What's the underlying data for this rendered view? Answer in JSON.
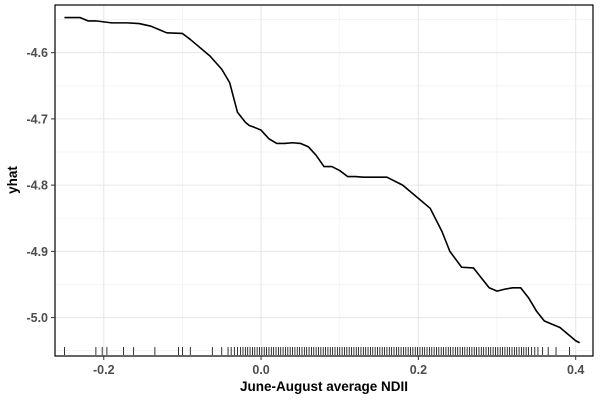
{
  "chart_data": {
    "type": "line",
    "title": "",
    "xlabel": "June-August average NDII",
    "ylabel": "yhat",
    "xlim": [
      -0.262,
      0.422
    ],
    "ylim": [
      -5.058,
      -4.528
    ],
    "x_ticks": [
      -0.2,
      0.0,
      0.2,
      0.4
    ],
    "x_tick_labels": [
      "-0.2",
      "0.0",
      "0.2",
      "0.4"
    ],
    "y_ticks": [
      -4.6,
      -4.7,
      -4.8,
      -4.9,
      -5.0
    ],
    "y_tick_labels": [
      "-4.6",
      "-4.7",
      "-4.8",
      "-4.9",
      "-5.0"
    ],
    "grid": true,
    "series": [
      {
        "color": "#000000",
        "x": [
          -0.25,
          -0.23,
          -0.22,
          -0.21,
          -0.19,
          -0.17,
          -0.155,
          -0.14,
          -0.13,
          -0.12,
          -0.1,
          -0.09,
          -0.08,
          -0.065,
          -0.05,
          -0.04,
          -0.03,
          -0.02,
          -0.015,
          -0.01,
          0.0,
          0.01,
          0.02,
          0.03,
          0.04,
          0.05,
          0.06,
          0.07,
          0.08,
          0.09,
          0.1,
          0.11,
          0.12,
          0.13,
          0.14,
          0.15,
          0.16,
          0.18,
          0.2,
          0.215,
          0.23,
          0.24,
          0.255,
          0.27,
          0.28,
          0.29,
          0.3,
          0.31,
          0.32,
          0.33,
          0.34,
          0.35,
          0.36,
          0.37,
          0.38,
          0.39,
          0.4,
          0.405
        ],
        "y": [
          -4.547,
          -4.547,
          -4.552,
          -4.552,
          -4.555,
          -4.555,
          -4.556,
          -4.56,
          -4.565,
          -4.57,
          -4.571,
          -4.58,
          -4.59,
          -4.605,
          -4.625,
          -4.645,
          -4.69,
          -4.705,
          -4.71,
          -4.712,
          -4.717,
          -4.73,
          -4.737,
          -4.737,
          -4.736,
          -4.737,
          -4.742,
          -4.755,
          -4.772,
          -4.772,
          -4.778,
          -4.787,
          -4.787,
          -4.788,
          -4.788,
          -4.788,
          -4.788,
          -4.8,
          -4.82,
          -4.835,
          -4.87,
          -4.9,
          -4.924,
          -4.925,
          -4.94,
          -4.955,
          -4.96,
          -4.957,
          -4.955,
          -4.955,
          -4.97,
          -4.99,
          -5.005,
          -5.01,
          -5.015,
          -5.025,
          -5.035,
          -5.038
        ]
      }
    ],
    "rug": [
      -0.25,
      -0.21,
      -0.202,
      -0.196,
      -0.175,
      -0.162,
      -0.135,
      -0.105,
      -0.1,
      -0.09,
      -0.062,
      -0.05,
      -0.042,
      -0.038,
      -0.034,
      -0.03,
      -0.026,
      -0.023,
      -0.02,
      -0.017,
      -0.014,
      -0.011,
      -0.008,
      -0.005,
      -0.002,
      0.001,
      0.004,
      0.007,
      0.01,
      0.013,
      0.016,
      0.019,
      0.022,
      0.025,
      0.028,
      0.031,
      0.034,
      0.037,
      0.04,
      0.043,
      0.046,
      0.049,
      0.052,
      0.055,
      0.058,
      0.061,
      0.064,
      0.067,
      0.07,
      0.073,
      0.076,
      0.079,
      0.082,
      0.085,
      0.088,
      0.091,
      0.094,
      0.097,
      0.1,
      0.103,
      0.106,
      0.109,
      0.112,
      0.115,
      0.118,
      0.121,
      0.124,
      0.127,
      0.13,
      0.133,
      0.136,
      0.139,
      0.142,
      0.145,
      0.148,
      0.151,
      0.154,
      0.157,
      0.16,
      0.163,
      0.166,
      0.169,
      0.172,
      0.175,
      0.178,
      0.181,
      0.184,
      0.187,
      0.19,
      0.193,
      0.196,
      0.199,
      0.202,
      0.205,
      0.208,
      0.211,
      0.214,
      0.217,
      0.22,
      0.223,
      0.226,
      0.229,
      0.232,
      0.235,
      0.238,
      0.241,
      0.244,
      0.247,
      0.25,
      0.253,
      0.256,
      0.259,
      0.262,
      0.265,
      0.268,
      0.271,
      0.274,
      0.277,
      0.28,
      0.283,
      0.286,
      0.289,
      0.292,
      0.295,
      0.298,
      0.301,
      0.304,
      0.307,
      0.31,
      0.313,
      0.316,
      0.319,
      0.322,
      0.325,
      0.328,
      0.331,
      0.334,
      0.337,
      0.34,
      0.344,
      0.348,
      0.352,
      0.358,
      0.365,
      0.375,
      0.392
    ]
  }
}
